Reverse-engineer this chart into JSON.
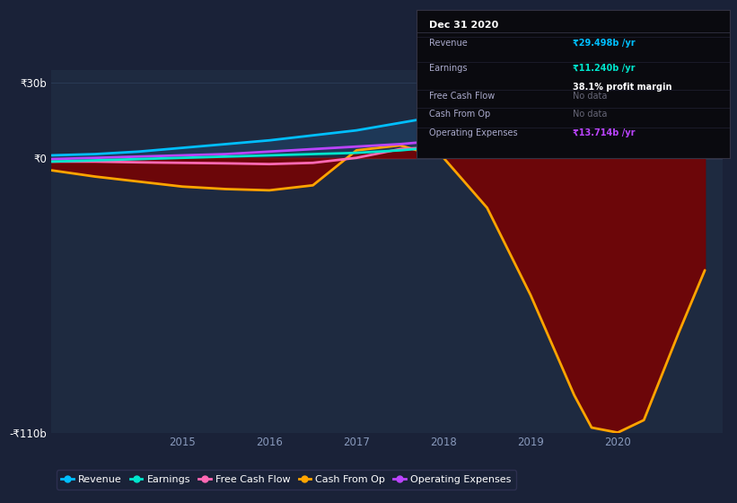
{
  "bg_color": "#1a2238",
  "plot_bg_color": "#1e2a40",
  "grid_color": "#2a3a55",
  "zero_line_color": "#8888aa",
  "ylim": [
    -110,
    35
  ],
  "xlim": [
    2013.5,
    2021.2
  ],
  "yticks": [
    -110,
    0,
    30
  ],
  "ytick_labels": [
    "-₹110b",
    "₹0",
    "₹30b"
  ],
  "xtick_labels": [
    "2015",
    "2016",
    "2017",
    "2018",
    "2019",
    "2020"
  ],
  "xtick_values": [
    2015,
    2016,
    2017,
    2018,
    2019,
    2020
  ],
  "revenue": {
    "x": [
      2013.5,
      2014.0,
      2014.5,
      2015.0,
      2015.5,
      2016.0,
      2016.5,
      2017.0,
      2017.5,
      2018.0,
      2018.5,
      2019.0,
      2019.5,
      2020.0,
      2020.5,
      2021.0
    ],
    "y": [
      1.0,
      1.5,
      2.5,
      4.0,
      5.5,
      7.0,
      9.0,
      11.0,
      14.0,
      17.0,
      20.0,
      23.0,
      25.5,
      27.5,
      29.5,
      30.0
    ],
    "color": "#00bfff",
    "label": "Revenue"
  },
  "earnings": {
    "x": [
      2013.5,
      2014.0,
      2014.5,
      2015.0,
      2015.5,
      2016.0,
      2016.5,
      2017.0,
      2017.5,
      2018.0,
      2018.5,
      2019.0,
      2019.5,
      2020.0,
      2020.5,
      2021.0
    ],
    "y": [
      -1.5,
      -1.0,
      -0.5,
      0.0,
      0.5,
      1.0,
      1.5,
      2.0,
      3.0,
      4.5,
      6.0,
      7.5,
      9.0,
      10.5,
      11.5,
      12.0
    ],
    "color": "#00e5cc",
    "label": "Earnings"
  },
  "free_cash_flow": {
    "x": [
      2013.5,
      2014.0,
      2014.5,
      2015.0,
      2015.5,
      2016.0,
      2016.5,
      2017.0,
      2017.5,
      2018.0,
      2018.5,
      2019.0,
      2019.5,
      2020.0,
      2020.5,
      2021.0
    ],
    "y": [
      -1.5,
      -1.5,
      -1.8,
      -2.0,
      -2.2,
      -2.5,
      -2.0,
      0.0,
      3.5,
      4.5,
      3.5,
      2.5,
      2.0,
      1.8,
      2.0,
      2.2
    ],
    "color": "#ff69b4",
    "label": "Free Cash Flow"
  },
  "cash_from_op": {
    "x": [
      2013.5,
      2014.0,
      2014.5,
      2015.0,
      2015.5,
      2016.0,
      2016.5,
      2017.0,
      2017.5,
      2018.0,
      2018.5,
      2019.0,
      2019.5,
      2019.7,
      2020.0,
      2020.3,
      2020.7,
      2021.0
    ],
    "y": [
      -5.0,
      -7.5,
      -9.5,
      -11.5,
      -12.5,
      -13.0,
      -11.0,
      3.0,
      5.0,
      0.0,
      -20.0,
      -55.0,
      -95.0,
      -108.0,
      -110.0,
      -105.0,
      -70.0,
      -45.0
    ],
    "color": "#ffa500",
    "label": "Cash From Op"
  },
  "operating_expenses": {
    "x": [
      2013.5,
      2014.0,
      2014.5,
      2015.0,
      2015.5,
      2016.0,
      2016.5,
      2017.0,
      2017.5,
      2018.0,
      2018.5,
      2019.0,
      2019.5,
      2020.0,
      2020.5,
      2021.0
    ],
    "y": [
      -0.5,
      0.0,
      0.5,
      1.0,
      1.5,
      2.5,
      3.5,
      4.5,
      5.5,
      7.0,
      8.5,
      10.0,
      11.5,
      12.5,
      13.5,
      14.0
    ],
    "color": "#bb44ff",
    "label": "Operating Expenses"
  },
  "fill_color": "#7a0000",
  "fill_alpha": 0.85,
  "revenue_fill_color": "#1e3a5a",
  "revenue_fill_alpha": 0.9,
  "tooltip": {
    "date": "Dec 31 2020",
    "rows": [
      {
        "label": "Revenue",
        "value": "₹29.498b /yr",
        "value_color": "#00bfff",
        "extra": null,
        "extra_color": null
      },
      {
        "label": "Earnings",
        "value": "₹11.240b /yr",
        "value_color": "#00e5cc",
        "extra": "38.1% profit margin",
        "extra_color": "#ffffff"
      },
      {
        "label": "Free Cash Flow",
        "value": "No data",
        "value_color": "#666677",
        "extra": null,
        "extra_color": null
      },
      {
        "label": "Cash From Op",
        "value": "No data",
        "value_color": "#666677",
        "extra": null,
        "extra_color": null
      },
      {
        "label": "Operating Expenses",
        "value": "₹13.714b /yr",
        "value_color": "#bb44ff",
        "extra": null,
        "extra_color": null
      }
    ],
    "bg": "#0a0a0f",
    "border_color": "#333344",
    "label_color": "#aaaacc",
    "title_color": "#ffffff"
  },
  "legend_items": [
    {
      "label": "Revenue",
      "color": "#00bfff"
    },
    {
      "label": "Earnings",
      "color": "#00e5cc"
    },
    {
      "label": "Free Cash Flow",
      "color": "#ff69b4"
    },
    {
      "label": "Cash From Op",
      "color": "#ffa500"
    },
    {
      "label": "Operating Expenses",
      "color": "#bb44ff"
    }
  ]
}
